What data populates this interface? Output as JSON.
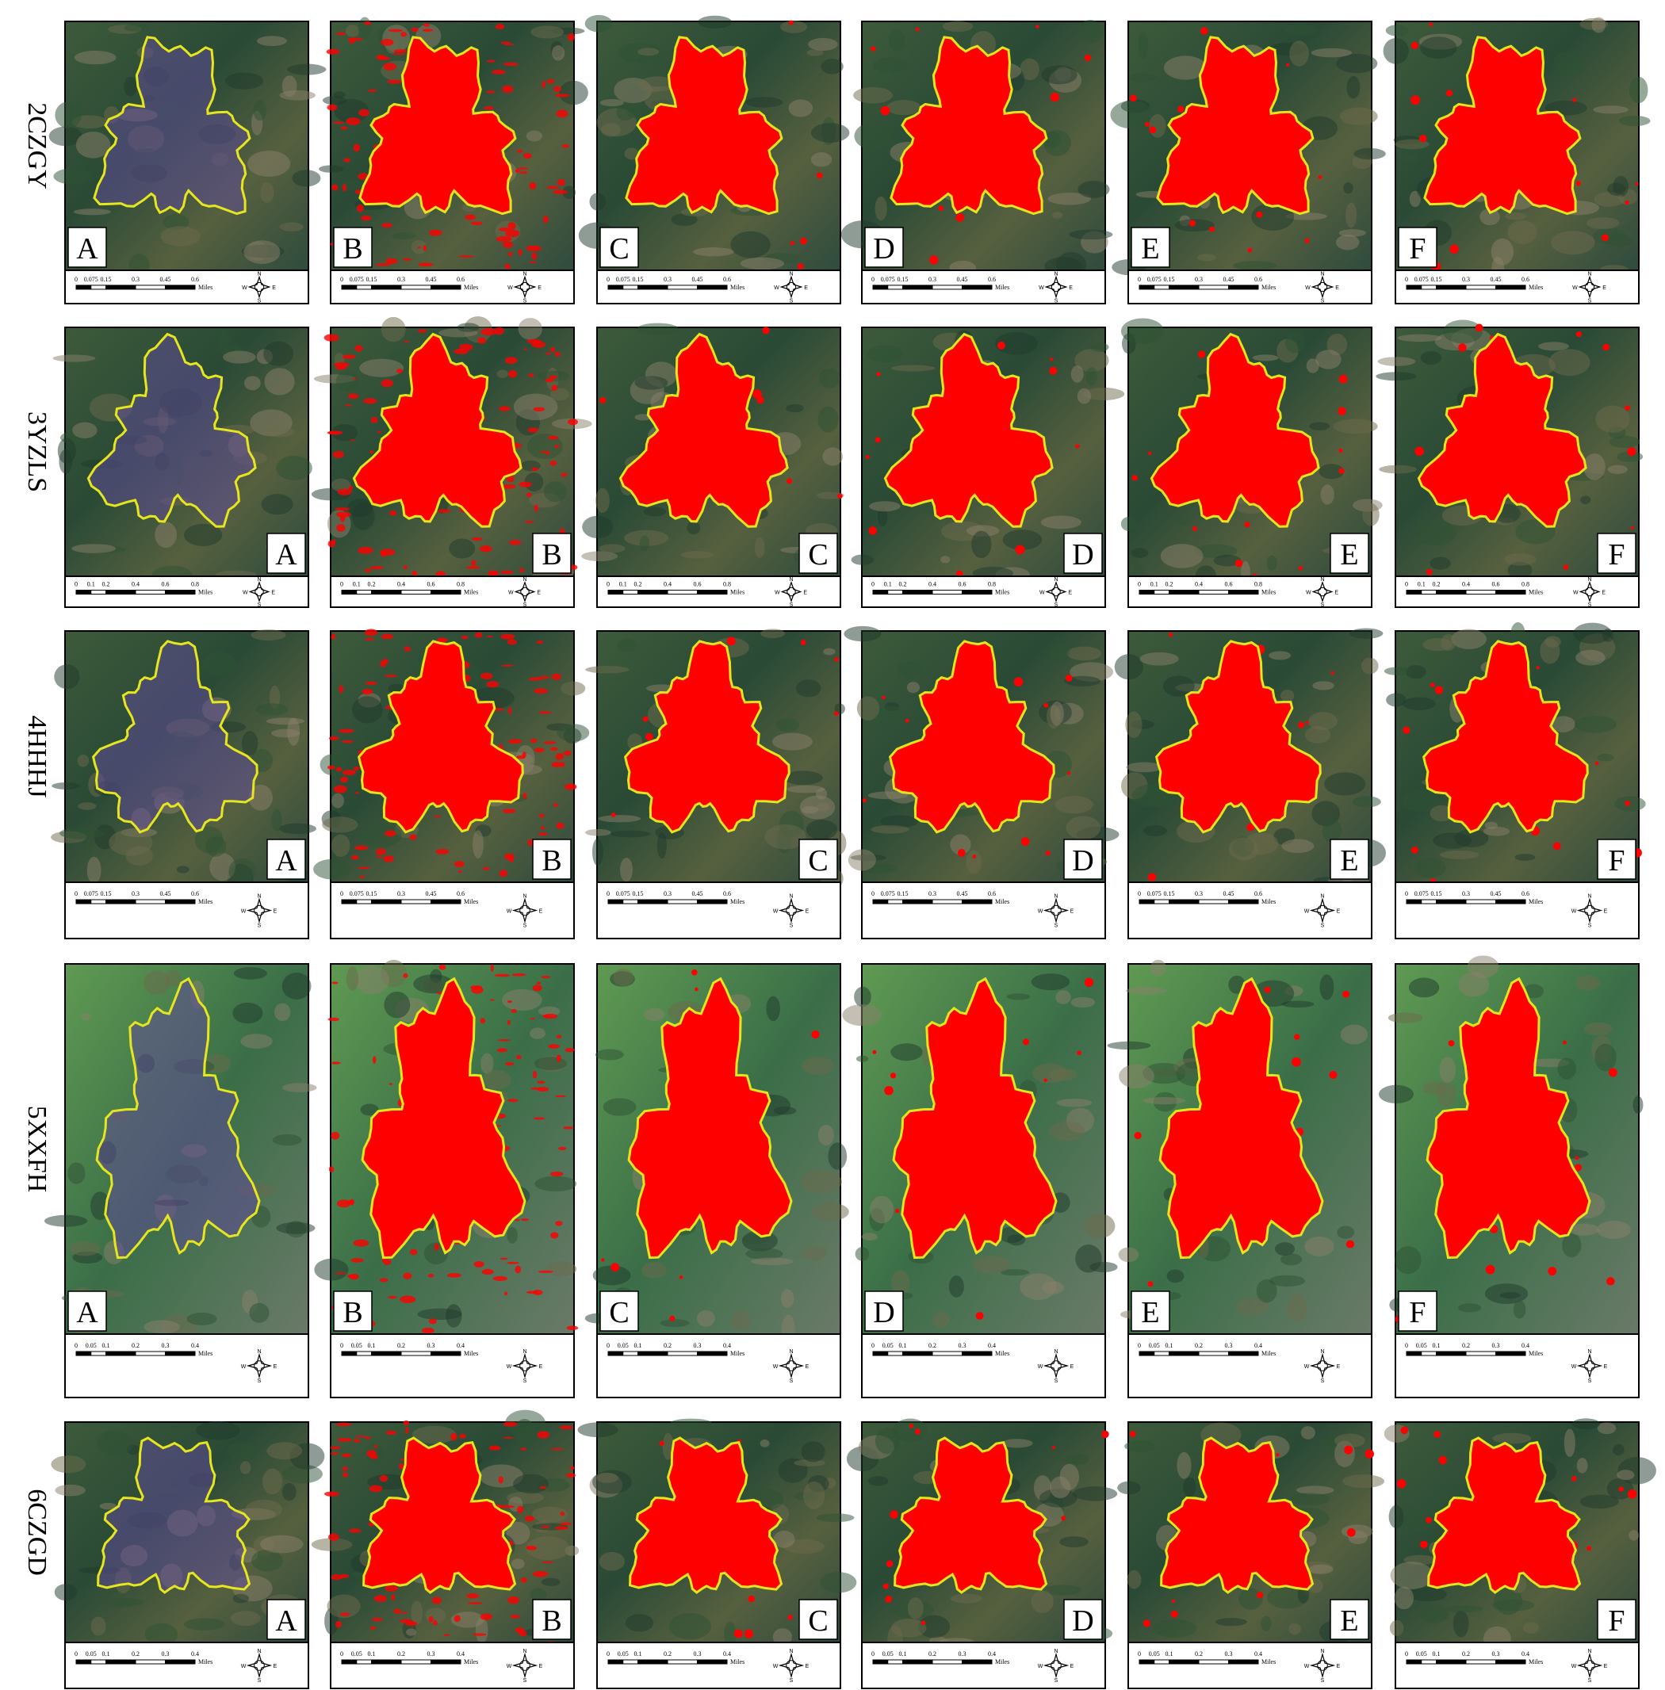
{
  "rows": [
    {
      "label": "2CZGY",
      "scale_ticks": [
        "0",
        "0.075",
        "0.15",
        "0.3",
        "0.45",
        "0.6"
      ]
    },
    {
      "label": "3YZLS",
      "scale_ticks": [
        "0",
        "0.1",
        "0.2",
        "0.4",
        "0.6",
        "0.8"
      ]
    },
    {
      "label": "4HHHJ",
      "scale_ticks": [
        "0",
        "0.075",
        "0.15",
        "0.3",
        "0.45",
        "0.6"
      ]
    },
    {
      "label": "5XXFH",
      "scale_ticks": [
        "0",
        "0.05",
        "0.1",
        "0.2",
        "0.3",
        "0.4"
      ]
    },
    {
      "label": "6CZGD",
      "scale_ticks": [
        "0",
        "0.05",
        "0.1",
        "0.2",
        "0.3",
        "0.4"
      ]
    }
  ],
  "panels": [
    "A",
    "B",
    "C",
    "D",
    "E",
    "F"
  ],
  "scale_unit": "Miles",
  "compass": {
    "north": "N",
    "south": "S",
    "west": "W",
    "east": "E"
  }
}
